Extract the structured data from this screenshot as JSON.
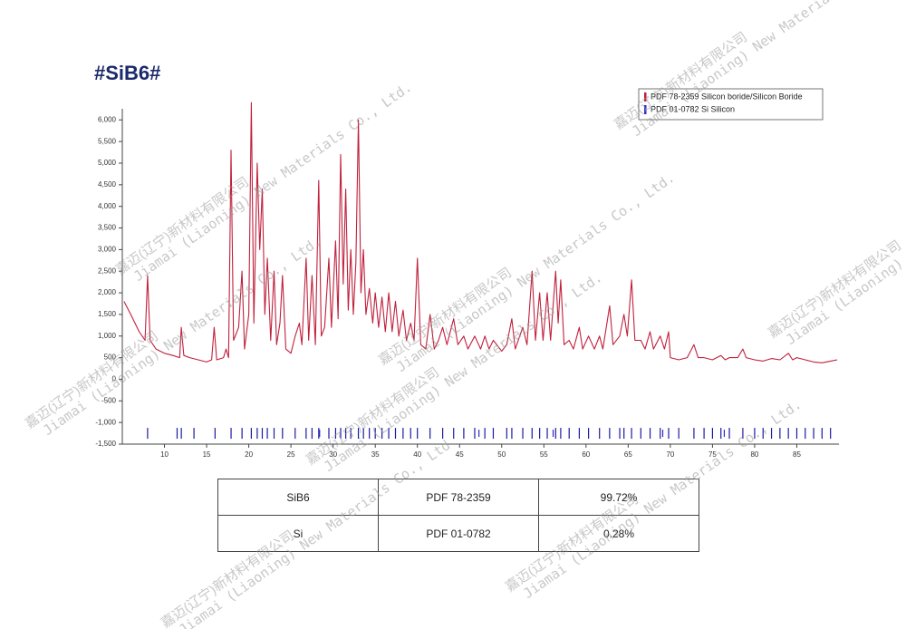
{
  "chart_data": {
    "type": "line",
    "title": "#SiB6#",
    "x": [
      5.2,
      6,
      7,
      7.7,
      8,
      8.3,
      9,
      10,
      11,
      11.8,
      12,
      12.3,
      13,
      14,
      15,
      15.6,
      15.9,
      16.2,
      17,
      17.3,
      17.6,
      17.9,
      18.2,
      18.8,
      19.2,
      19.5,
      20,
      20.3,
      20.6,
      21,
      21.3,
      21.6,
      21.9,
      22.2,
      22.6,
      23,
      23.3,
      23.7,
      24,
      24.4,
      25,
      25.5,
      26,
      26.3,
      26.8,
      27.1,
      27.5,
      27.9,
      28.3,
      28.6,
      29,
      29.5,
      29.8,
      30.3,
      30.6,
      30.9,
      31.2,
      31.5,
      31.8,
      32.1,
      32.4,
      32.7,
      33,
      33.3,
      33.6,
      33.9,
      34.3,
      34.7,
      35,
      35.4,
      35.8,
      36.2,
      36.6,
      37,
      37.4,
      37.8,
      38.3,
      38.7,
      39.2,
      39.6,
      40,
      40.4,
      41,
      41.5,
      42,
      42.5,
      43,
      43.5,
      44.3,
      44.8,
      45.5,
      46,
      46.8,
      47.5,
      48,
      48.5,
      49,
      50,
      50.6,
      51.2,
      51.6,
      52.5,
      53,
      53.6,
      54,
      54.5,
      54.9,
      55.4,
      55.8,
      56.4,
      56.7,
      57,
      57.4,
      58,
      58.5,
      59.2,
      59.6,
      60.3,
      61,
      61.6,
      62,
      62.8,
      63.2,
      64,
      64.5,
      64.9,
      65.4,
      65.8,
      66.5,
      67,
      67.6,
      68,
      68.8,
      69.3,
      69.8,
      70,
      71,
      72,
      72.8,
      73.3,
      74,
      75,
      76,
      76.5,
      77,
      78,
      78.6,
      79,
      80,
      81,
      82,
      83,
      84,
      84.5,
      85,
      86,
      87,
      88,
      89,
      89.8
    ],
    "series": [
      {
        "color": "#c0203c",
        "values": [
          1800,
          1500,
          1100,
          900,
          2400,
          900,
          700,
          600,
          550,
          500,
          1200,
          550,
          500,
          450,
          400,
          450,
          1200,
          450,
          500,
          700,
          500,
          5300,
          900,
          1200,
          2500,
          700,
          1500,
          6400,
          1300,
          5000,
          3000,
          4400,
          1500,
          2800,
          900,
          2500,
          800,
          1300,
          2400,
          700,
          600,
          1000,
          1300,
          800,
          2800,
          900,
          2400,
          800,
          4600,
          1000,
          1200,
          2800,
          1200,
          3200,
          1400,
          5200,
          2200,
          4400,
          1600,
          3000,
          1500,
          2700,
          6000,
          2000,
          3000,
          1500,
          2100,
          1300,
          2000,
          1200,
          1900,
          1100,
          2000,
          1100,
          1800,
          1000,
          1600,
          900,
          1300,
          900,
          2800,
          800,
          700,
          1500,
          700,
          900,
          1200,
          800,
          1400,
          800,
          1000,
          700,
          1000,
          700,
          1000,
          700,
          900,
          650,
          800,
          1400,
          700,
          1200,
          800,
          2500,
          900,
          2000,
          900,
          2000,
          900,
          2500,
          1300,
          2300,
          800,
          900,
          700,
          1200,
          700,
          1000,
          700,
          1000,
          700,
          1700,
          800,
          1000,
          1500,
          1000,
          2300,
          900,
          900,
          700,
          1100,
          700,
          1000,
          700,
          1100,
          500,
          450,
          500,
          800,
          500,
          500,
          450,
          550,
          450,
          500,
          500,
          700,
          500,
          450,
          420,
          480,
          450,
          600,
          450,
          500,
          450,
          400,
          380,
          420,
          450
        ]
      }
    ],
    "reflections": [
      {
        "name": "PDF 78-2359 Silicon boride/Silicon Boride",
        "color": "#1a1aa0",
        "x": [
          8,
          11.5,
          12,
          13.5,
          16,
          17.9,
          19.2,
          20.3,
          21,
          21.6,
          22.2,
          23,
          24,
          25.5,
          26.8,
          27.5,
          28.3,
          29.5,
          30.3,
          30.9,
          31.5,
          32.1,
          33,
          33.6,
          34.3,
          35,
          35.8,
          36.6,
          37.4,
          38.3,
          39.2,
          40,
          41.5,
          43,
          44.3,
          45.5,
          46.8,
          48,
          49,
          50.6,
          51.2,
          52.5,
          53.6,
          54.5,
          55.4,
          56.4,
          57,
          58,
          59.2,
          60.3,
          61.6,
          62.8,
          64,
          64.5,
          65.4,
          66.5,
          67.6,
          68.8,
          69.8,
          71,
          72.8,
          74,
          75,
          76,
          77,
          78.6,
          80,
          81,
          82,
          83,
          84,
          85,
          86,
          87,
          88,
          89
        ]
      },
      {
        "name": "PDF 01-0782 Si Silicon",
        "color": "#2a2ad0",
        "x": [
          28.4,
          47.3,
          56.1,
          69.1,
          76.4,
          88
        ]
      }
    ],
    "marker_level": -1250,
    "xlim": [
      5,
      90
    ],
    "ylim": [
      -1500,
      6300
    ],
    "xticks": [
      10,
      15,
      20,
      25,
      30,
      35,
      40,
      45,
      50,
      55,
      60,
      65,
      70,
      75,
      80,
      85
    ],
    "yticks": [
      {
        "value": -1500,
        "label": "-1,500"
      },
      {
        "value": -1000,
        "label": "-1,000"
      },
      -500,
      0,
      500,
      {
        "value": 1000,
        "label": "1,000"
      },
      {
        "value": 1500,
        "label": "1,500"
      },
      {
        "value": 2000,
        "label": "2,000"
      },
      {
        "value": 2500,
        "label": "2,500"
      },
      {
        "value": 3000,
        "label": "3,000"
      },
      {
        "value": 3500,
        "label": "3,500"
      },
      {
        "value": 4000,
        "label": "4,000"
      },
      {
        "value": 4500,
        "label": "4,500"
      },
      {
        "value": 5000,
        "label": "5,000"
      },
      {
        "value": 5500,
        "label": "5,500"
      },
      {
        "value": 6000,
        "label": "6,000"
      }
    ]
  },
  "table": {
    "rows": [
      [
        "SiB6",
        "PDF 78-2359",
        "99.72%"
      ],
      [
        "Si",
        "PDF 01-0782",
        "0.28%"
      ]
    ]
  },
  "watermark": {
    "cn": "嘉迈(辽宁)新材料有限公司",
    "en": "Jiamai (Liaoning) New Materials Co., Ltd."
  }
}
